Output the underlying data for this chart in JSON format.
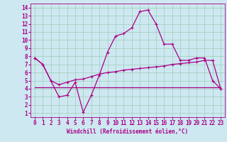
{
  "xlabel": "Windchill (Refroidissement éolien,°C)",
  "background_color": "#cde8f0",
  "grid_color": "#a0ccbb",
  "line_color": "#aa0088",
  "x": [
    0,
    1,
    2,
    3,
    4,
    5,
    6,
    7,
    8,
    9,
    10,
    11,
    12,
    13,
    14,
    15,
    16,
    17,
    18,
    19,
    20,
    21,
    22,
    23
  ],
  "line1": [
    7.8,
    7.0,
    5.0,
    3.0,
    3.2,
    4.8,
    1.1,
    3.2,
    5.7,
    8.5,
    10.5,
    10.8,
    11.5,
    13.5,
    13.7,
    12.0,
    9.5,
    9.5,
    7.5,
    7.5,
    7.8,
    7.8,
    5.0,
    4.0
  ],
  "line2": [
    7.8,
    7.0,
    5.0,
    4.5,
    4.8,
    5.1,
    5.2,
    5.5,
    5.8,
    6.0,
    6.1,
    6.3,
    6.4,
    6.5,
    6.6,
    6.7,
    6.8,
    7.0,
    7.1,
    7.2,
    7.3,
    7.5,
    7.5,
    4.0
  ],
  "line3": [
    4.2,
    4.2,
    4.2,
    4.2,
    4.2,
    4.2,
    4.2,
    4.2,
    4.2,
    4.2,
    4.2,
    4.2,
    4.2,
    4.2,
    4.2,
    4.2,
    4.2,
    4.2,
    4.2,
    4.2,
    4.2,
    4.2,
    4.2,
    4.2
  ],
  "ylim": [
    0.5,
    14.5
  ],
  "xlim": [
    -0.5,
    23.5
  ],
  "yticks": [
    1,
    2,
    3,
    4,
    5,
    6,
    7,
    8,
    9,
    10,
    11,
    12,
    13,
    14
  ],
  "xticks": [
    0,
    1,
    2,
    3,
    4,
    5,
    6,
    7,
    8,
    9,
    10,
    11,
    12,
    13,
    14,
    15,
    16,
    17,
    18,
    19,
    20,
    21,
    22,
    23
  ]
}
